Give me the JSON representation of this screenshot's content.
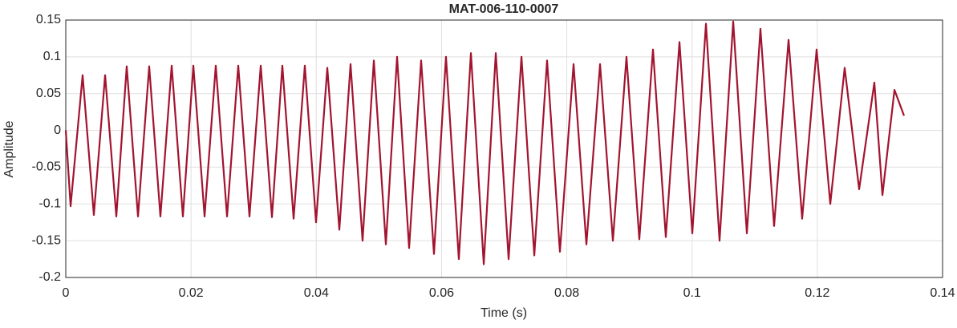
{
  "chart_data": {
    "type": "line",
    "title": "MAT-006-110-0007",
    "x_label": "Time (s)",
    "y_label": "Amplitude",
    "x": [
      0,
      0.00077,
      0.00269,
      0.00448,
      0.00628,
      0.00807,
      0.00973,
      0.01153,
      0.01332,
      0.01511,
      0.01691,
      0.0187,
      0.02037,
      0.02216,
      0.02395,
      0.02575,
      0.02754,
      0.02933,
      0.03113,
      0.03292,
      0.03458,
      0.03638,
      0.03817,
      0.03996,
      0.04176,
      0.04368,
      0.04547,
      0.04739,
      0.04919,
      0.05111,
      0.0529,
      0.05482,
      0.05674,
      0.05879,
      0.06071,
      0.06276,
      0.06469,
      0.06674,
      0.06866,
      0.07071,
      0.07276,
      0.07481,
      0.07685,
      0.0789,
      0.08108,
      0.08313,
      0.08531,
      0.08736,
      0.08953,
      0.09158,
      0.09376,
      0.09581,
      0.09799,
      0.10004,
      0.10222,
      0.10439,
      0.10657,
      0.10875,
      0.11092,
      0.1131,
      0.11541,
      0.11758,
      0.11989,
      0.12207,
      0.12437,
      0.12668,
      0.12911,
      0.1304,
      0.13232,
      0.13385
    ],
    "series": [
      {
        "name": "Amplitude",
        "color": "#a2142f",
        "values": [
          0,
          -0.103,
          0.075,
          -0.115,
          0.075,
          -0.117,
          0.087,
          -0.117,
          0.087,
          -0.117,
          0.088,
          -0.117,
          0.088,
          -0.117,
          0.088,
          -0.117,
          0.088,
          -0.117,
          0.088,
          -0.118,
          0.088,
          -0.12,
          0.088,
          -0.125,
          0.085,
          -0.135,
          0.09,
          -0.15,
          0.095,
          -0.155,
          0.1,
          -0.16,
          0.095,
          -0.168,
          0.1,
          -0.175,
          0.105,
          -0.182,
          0.105,
          -0.175,
          0.1,
          -0.17,
          0.095,
          -0.165,
          0.09,
          -0.155,
          0.09,
          -0.15,
          0.1,
          -0.148,
          0.11,
          -0.145,
          0.12,
          -0.14,
          0.145,
          -0.15,
          0.148,
          -0.14,
          0.138,
          -0.13,
          0.123,
          -0.12,
          0.11,
          -0.1,
          0.085,
          -0.08,
          0.065,
          -0.088,
          0.055,
          0.02
        ]
      }
    ],
    "xlim": [
      0,
      0.14
    ],
    "xticks": [
      0,
      0.02,
      0.04,
      0.06,
      0.08,
      0.1,
      0.12,
      0.14
    ],
    "ylim": [
      -0.2,
      0.15
    ],
    "yticks": [
      -0.2,
      -0.15,
      -0.1,
      -0.05,
      0,
      0.05,
      0.1,
      0.15
    ],
    "grid": true
  }
}
